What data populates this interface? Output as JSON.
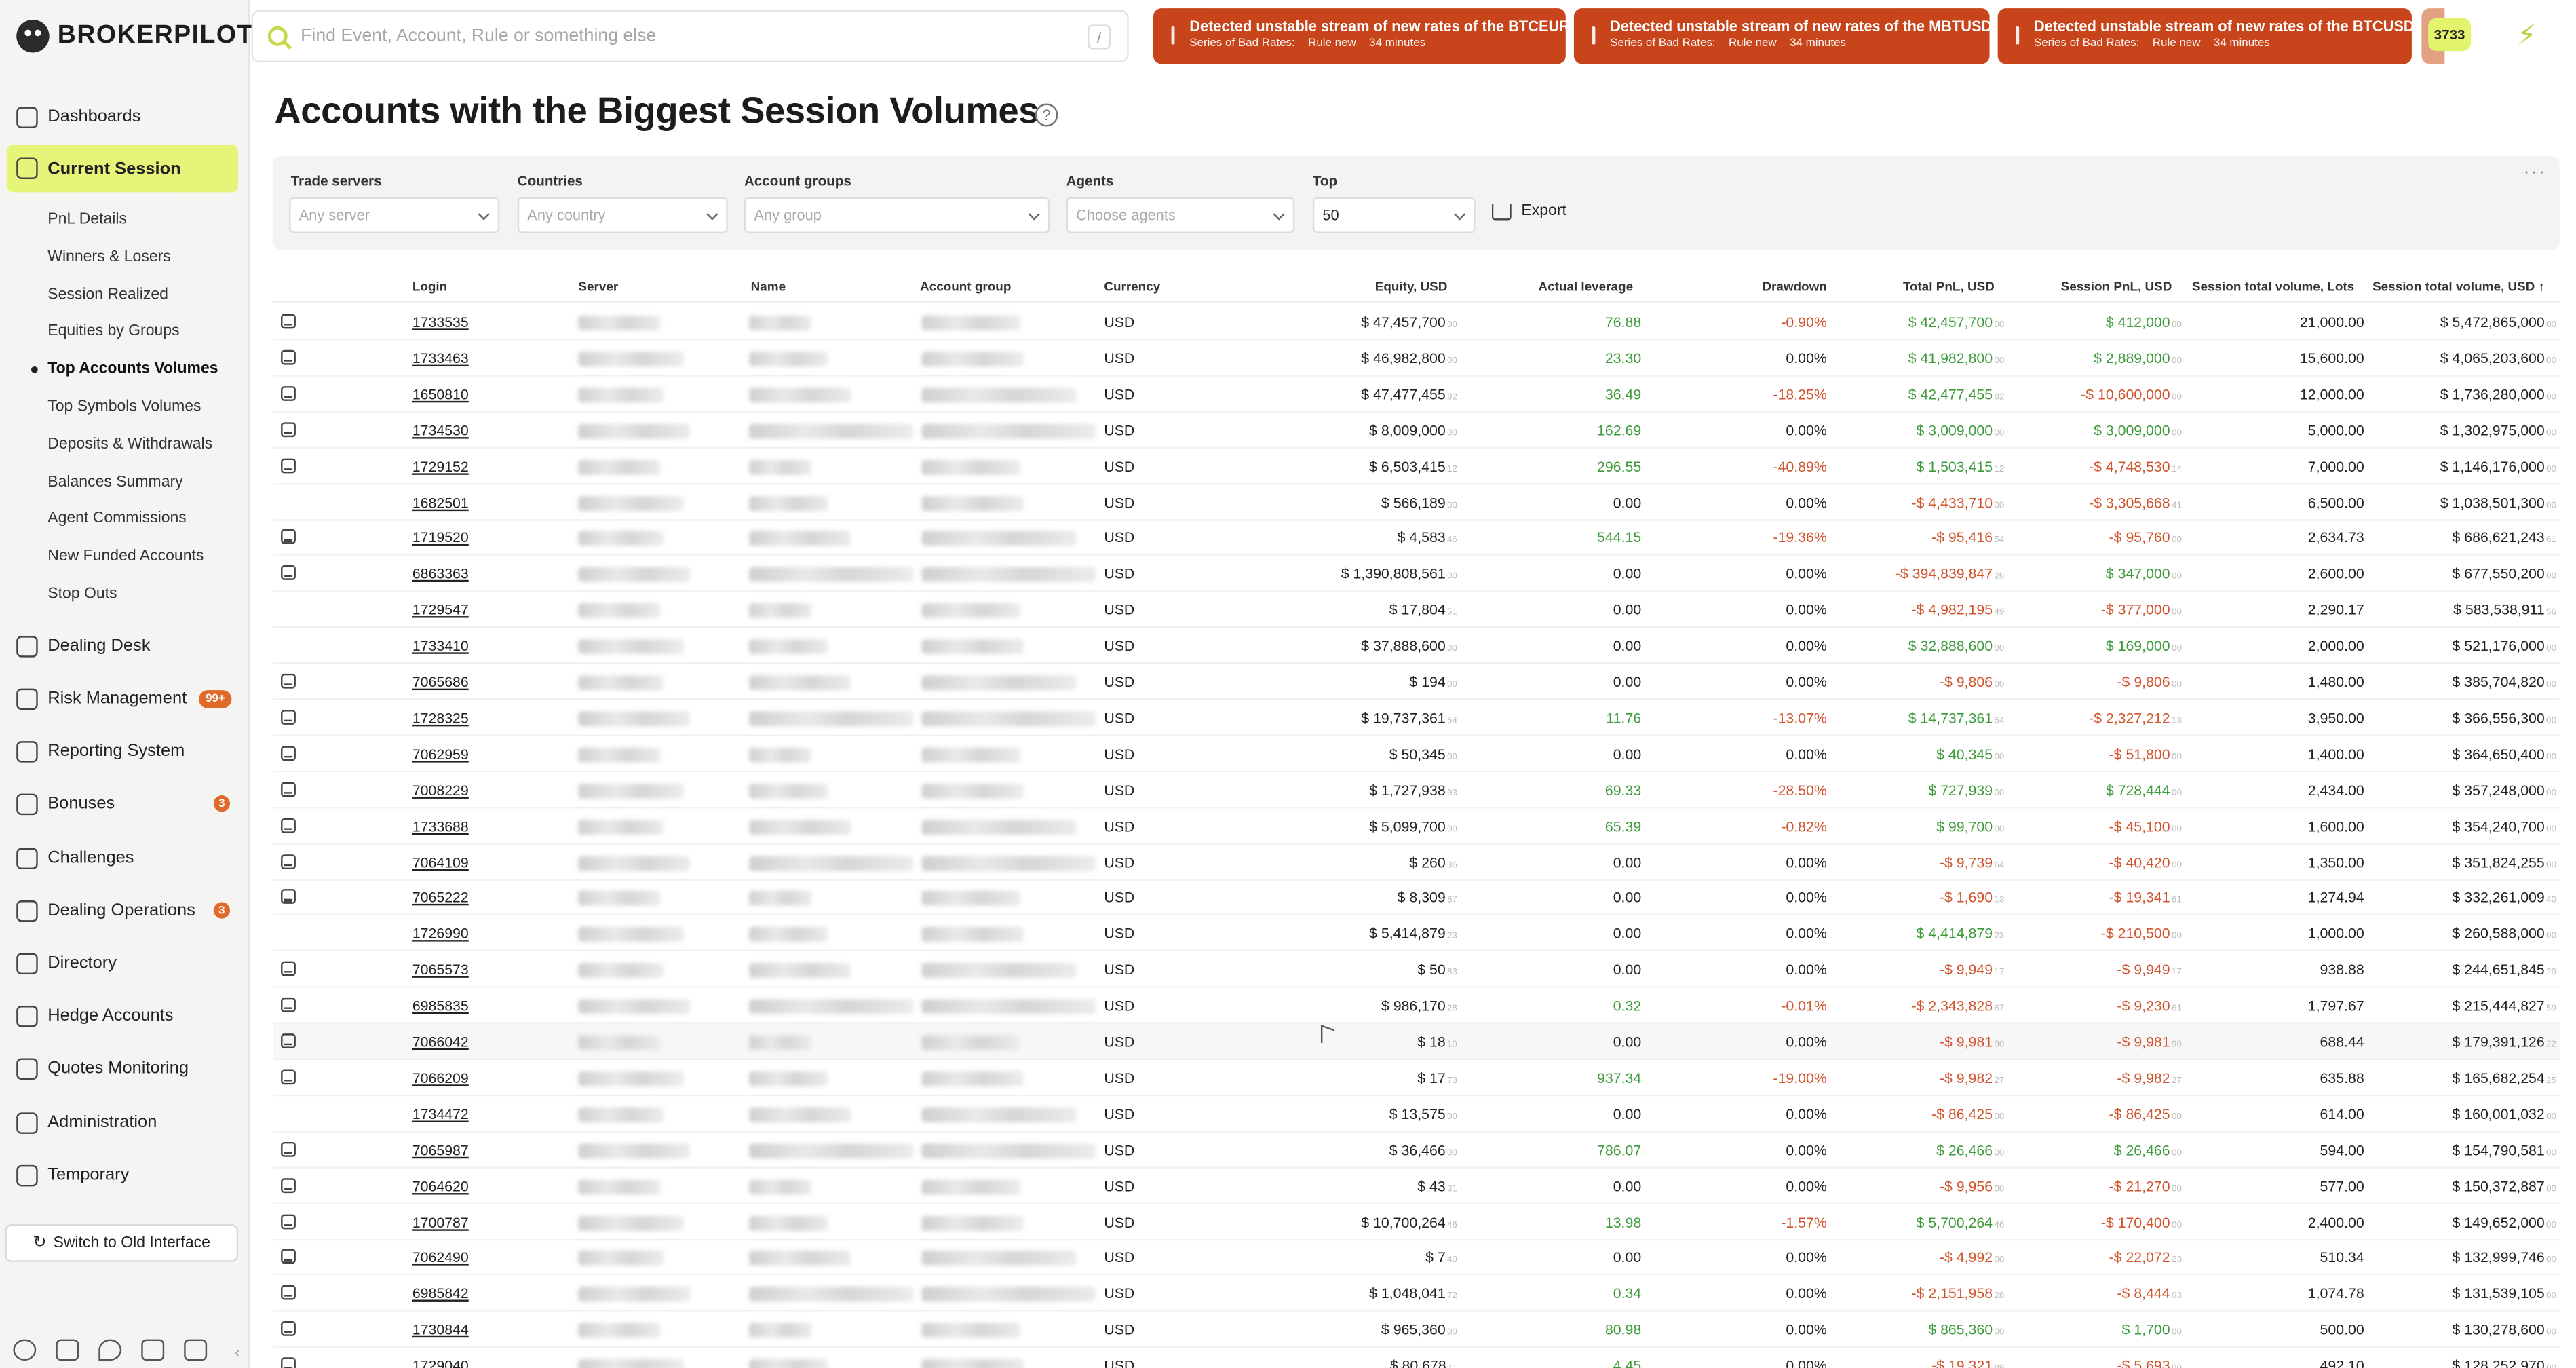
{
  "app": {
    "name": "BROKERPILOT"
  },
  "search": {
    "placeholder": "Find Event, Account, Rule or something else",
    "shortcut": "/"
  },
  "alerts": [
    {
      "title": "Detected unstable stream of new rates of the BTCEUR!",
      "label": "Series of Bad Rates:",
      "rule": "Rule new",
      "time": "34 minutes"
    },
    {
      "title": "Detected unstable stream of new rates of the MBTUSD!",
      "label": "Series of Bad Rates:",
      "rule": "Rule new",
      "time": "34 minutes"
    },
    {
      "title": "Detected unstable stream of new rates of the BTCUSD!",
      "label": "Series of Bad Rates:",
      "rule": "Rule new",
      "time": "34 minutes"
    }
  ],
  "notifications_count": "3733",
  "sidebar": {
    "items": [
      {
        "label": "Dashboards",
        "badge": ""
      },
      {
        "label": "Current Session",
        "badge": ""
      },
      {
        "label": "Dealing Desk",
        "badge": ""
      },
      {
        "label": "Risk Management",
        "badge": "99+"
      },
      {
        "label": "Reporting System",
        "badge": ""
      },
      {
        "label": "Bonuses",
        "badge": "3"
      },
      {
        "label": "Challenges",
        "badge": ""
      },
      {
        "label": "Dealing Operations",
        "badge": "3"
      },
      {
        "label": "Directory",
        "badge": ""
      },
      {
        "label": "Hedge Accounts",
        "badge": ""
      },
      {
        "label": "Quotes Monitoring",
        "badge": ""
      },
      {
        "label": "Administration",
        "badge": ""
      },
      {
        "label": "Temporary",
        "badge": ""
      }
    ],
    "sub_items": [
      "PnL Details",
      "Winners & Losers",
      "Session Realized",
      "Equities by Groups",
      "Top Accounts Volumes",
      "Top Symbols Volumes",
      "Deposits & Withdrawals",
      "Balances Summary",
      "Agent Commissions",
      "New Funded Accounts",
      "Stop Outs"
    ],
    "switch_label": "Switch to Old Interface"
  },
  "page": {
    "title": "Accounts with the Biggest Session Volumes"
  },
  "filters": {
    "trade_servers": {
      "label": "Trade servers",
      "placeholder": "Any server"
    },
    "countries": {
      "label": "Countries",
      "placeholder": "Any country"
    },
    "account_groups": {
      "label": "Account groups",
      "placeholder": "Any group"
    },
    "agents": {
      "label": "Agents",
      "placeholder": "Choose agents"
    },
    "top": {
      "label": "Top",
      "value": "50"
    },
    "export_label": "Export"
  },
  "table": {
    "columns": [
      "Login",
      "Server",
      "Name",
      "Account group",
      "Currency",
      "Equity, USD",
      "Actual leverage",
      "Drawdown",
      "Total PnL, USD",
      "Session PnL, USD",
      "Session total volume, Lots",
      "Session total volume, USD"
    ],
    "sort_indicator": "↑",
    "rows": [
      {
        "icon": true,
        "login": "1733535",
        "currency": "USD",
        "equity": "$ 47,457,700",
        "equity_dec": "00",
        "leverage": "76.88",
        "drawdown": "-0.90%",
        "total_pnl": "$ 42,457,700",
        "total_pnl_dec": "00",
        "session_pnl": "$ 412,000",
        "session_pnl_dec": "00",
        "lots": "21,000.00",
        "vol_usd": "$ 5,472,865,000",
        "vol_dec": "00"
      },
      {
        "icon": true,
        "login": "1733463",
        "currency": "USD",
        "equity": "$ 46,982,800",
        "equity_dec": "00",
        "leverage": "23.30",
        "drawdown": "0.00%",
        "total_pnl": "$ 41,982,800",
        "total_pnl_dec": "00",
        "session_pnl": "$ 2,889,000",
        "session_pnl_dec": "00",
        "lots": "15,600.00",
        "vol_usd": "$ 4,065,203,600",
        "vol_dec": "00"
      },
      {
        "icon": true,
        "login": "1650810",
        "currency": "USD",
        "equity": "$ 47,477,455",
        "equity_dec": "82",
        "leverage": "36.49",
        "drawdown": "-18.25%",
        "total_pnl": "$ 42,477,455",
        "total_pnl_dec": "82",
        "session_pnl": "-$ 10,600,000",
        "session_pnl_dec": "00",
        "lots": "12,000.00",
        "vol_usd": "$ 1,736,280,000",
        "vol_dec": "00"
      },
      {
        "icon": true,
        "login": "1734530",
        "currency": "USD",
        "equity": "$ 8,009,000",
        "equity_dec": "00",
        "leverage": "162.69",
        "drawdown": "0.00%",
        "total_pnl": "$ 3,009,000",
        "total_pnl_dec": "00",
        "session_pnl": "$ 3,009,000",
        "session_pnl_dec": "00",
        "lots": "5,000.00",
        "vol_usd": "$ 1,302,975,000",
        "vol_dec": "00"
      },
      {
        "icon": true,
        "login": "1729152",
        "currency": "USD",
        "equity": "$ 6,503,415",
        "equity_dec": "12",
        "leverage": "296.55",
        "drawdown": "-40.89%",
        "total_pnl": "$ 1,503,415",
        "total_pnl_dec": "12",
        "session_pnl": "-$ 4,748,530",
        "session_pnl_dec": "14",
        "lots": "7,000.00",
        "vol_usd": "$ 1,146,176,000",
        "vol_dec": "00"
      },
      {
        "icon": false,
        "login": "1682501",
        "currency": "USD",
        "equity": "$ 566,189",
        "equity_dec": "00",
        "leverage": "0.00",
        "drawdown": "0.00%",
        "total_pnl": "-$ 4,433,710",
        "total_pnl_dec": "00",
        "session_pnl": "-$ 3,305,668",
        "session_pnl_dec": "41",
        "lots": "6,500.00",
        "vol_usd": "$ 1,038,501,300",
        "vol_dec": "00"
      },
      {
        "icon": true,
        "login": "1719520",
        "currency": "USD",
        "equity": "$ 4,583",
        "equity_dec": "46",
        "leverage": "544.15",
        "drawdown": "-19.36%",
        "total_pnl": "-$ 95,416",
        "total_pnl_dec": "54",
        "session_pnl": "-$ 95,760",
        "session_pnl_dec": "00",
        "lots": "2,634.73",
        "vol_usd": "$ 686,621,243",
        "vol_dec": "61"
      },
      {
        "icon": true,
        "login": "6863363",
        "currency": "USD",
        "equity": "$ 1,390,808,561",
        "equity_dec": "00",
        "leverage": "0.00",
        "drawdown": "0.00%",
        "total_pnl": "-$ 394,839,847",
        "total_pnl_dec": "26",
        "session_pnl": "$ 347,000",
        "session_pnl_dec": "00",
        "lots": "2,600.00",
        "vol_usd": "$ 677,550,200",
        "vol_dec": "00"
      },
      {
        "icon": false,
        "login": "1729547",
        "currency": "USD",
        "equity": "$ 17,804",
        "equity_dec": "51",
        "leverage": "0.00",
        "drawdown": "0.00%",
        "total_pnl": "-$ 4,982,195",
        "total_pnl_dec": "49",
        "session_pnl": "-$ 377,000",
        "session_pnl_dec": "00",
        "lots": "2,290.17",
        "vol_usd": "$ 583,538,911",
        "vol_dec": "56"
      },
      {
        "icon": false,
        "login": "1733410",
        "currency": "USD",
        "equity": "$ 37,888,600",
        "equity_dec": "00",
        "leverage": "0.00",
        "drawdown": "0.00%",
        "total_pnl": "$ 32,888,600",
        "total_pnl_dec": "00",
        "session_pnl": "$ 169,000",
        "session_pnl_dec": "00",
        "lots": "2,000.00",
        "vol_usd": "$ 521,176,000",
        "vol_dec": "00"
      },
      {
        "icon": true,
        "login": "7065686",
        "currency": "USD",
        "equity": "$ 194",
        "equity_dec": "00",
        "leverage": "0.00",
        "drawdown": "0.00%",
        "total_pnl": "-$ 9,806",
        "total_pnl_dec": "00",
        "session_pnl": "-$ 9,806",
        "session_pnl_dec": "00",
        "lots": "1,480.00",
        "vol_usd": "$ 385,704,820",
        "vol_dec": "00"
      },
      {
        "icon": true,
        "login": "1728325",
        "currency": "USD",
        "equity": "$ 19,737,361",
        "equity_dec": "54",
        "leverage": "11.76",
        "drawdown": "-13.07%",
        "total_pnl": "$ 14,737,361",
        "total_pnl_dec": "54",
        "session_pnl": "-$ 2,327,212",
        "session_pnl_dec": "13",
        "lots": "3,950.00",
        "vol_usd": "$ 366,556,300",
        "vol_dec": "00"
      },
      {
        "icon": true,
        "login": "7062959",
        "currency": "USD",
        "equity": "$ 50,345",
        "equity_dec": "00",
        "leverage": "0.00",
        "drawdown": "0.00%",
        "total_pnl": "$ 40,345",
        "total_pnl_dec": "00",
        "session_pnl": "-$ 51,800",
        "session_pnl_dec": "00",
        "lots": "1,400.00",
        "vol_usd": "$ 364,650,400",
        "vol_dec": "00"
      },
      {
        "icon": true,
        "login": "7008229",
        "currency": "USD",
        "equity": "$ 1,727,938",
        "equity_dec": "93",
        "leverage": "69.33",
        "drawdown": "-28.50%",
        "total_pnl": "$ 727,939",
        "total_pnl_dec": "00",
        "session_pnl": "$ 728,444",
        "session_pnl_dec": "00",
        "lots": "2,434.00",
        "vol_usd": "$ 357,248,000",
        "vol_dec": "00"
      },
      {
        "icon": true,
        "login": "1733688",
        "currency": "USD",
        "equity": "$ 5,099,700",
        "equity_dec": "00",
        "leverage": "65.39",
        "drawdown": "-0.82%",
        "total_pnl": "$ 99,700",
        "total_pnl_dec": "00",
        "session_pnl": "-$ 45,100",
        "session_pnl_dec": "00",
        "lots": "1,600.00",
        "vol_usd": "$ 354,240,700",
        "vol_dec": "00"
      },
      {
        "icon": true,
        "login": "7064109",
        "currency": "USD",
        "equity": "$ 260",
        "equity_dec": "36",
        "leverage": "0.00",
        "drawdown": "0.00%",
        "total_pnl": "-$ 9,739",
        "total_pnl_dec": "64",
        "session_pnl": "-$ 40,420",
        "session_pnl_dec": "00",
        "lots": "1,350.00",
        "vol_usd": "$ 351,824,255",
        "vol_dec": "00"
      },
      {
        "icon": true,
        "login": "7065222",
        "currency": "USD",
        "equity": "$ 8,309",
        "equity_dec": "87",
        "leverage": "0.00",
        "drawdown": "0.00%",
        "total_pnl": "-$ 1,690",
        "total_pnl_dec": "13",
        "session_pnl": "-$ 19,341",
        "session_pnl_dec": "61",
        "lots": "1,274.94",
        "vol_usd": "$ 332,261,009",
        "vol_dec": "40"
      },
      {
        "icon": false,
        "login": "1726990",
        "currency": "USD",
        "equity": "$ 5,414,879",
        "equity_dec": "23",
        "leverage": "0.00",
        "drawdown": "0.00%",
        "total_pnl": "$ 4,414,879",
        "total_pnl_dec": "23",
        "session_pnl": "-$ 210,500",
        "session_pnl_dec": "00",
        "lots": "1,000.00",
        "vol_usd": "$ 260,588,000",
        "vol_dec": "00"
      },
      {
        "icon": true,
        "login": "7065573",
        "currency": "USD",
        "equity": "$ 50",
        "equity_dec": "83",
        "leverage": "0.00",
        "drawdown": "0.00%",
        "total_pnl": "-$ 9,949",
        "total_pnl_dec": "17",
        "session_pnl": "-$ 9,949",
        "session_pnl_dec": "17",
        "lots": "938.88",
        "vol_usd": "$ 244,651,845",
        "vol_dec": "29"
      },
      {
        "icon": true,
        "login": "6985835",
        "currency": "USD",
        "equity": "$ 986,170",
        "equity_dec": "28",
        "leverage": "0.32",
        "drawdown": "-0.01%",
        "total_pnl": "-$ 2,343,828",
        "total_pnl_dec": "67",
        "session_pnl": "-$ 9,230",
        "session_pnl_dec": "61",
        "lots": "1,797.67",
        "vol_usd": "$ 215,444,827",
        "vol_dec": "59"
      },
      {
        "icon": true,
        "login": "7066042",
        "currency": "USD",
        "equity": "$ 18",
        "equity_dec": "10",
        "leverage": "0.00",
        "drawdown": "0.00%",
        "total_pnl": "-$ 9,981",
        "total_pnl_dec": "90",
        "session_pnl": "-$ 9,981",
        "session_pnl_dec": "90",
        "lots": "688.44",
        "vol_usd": "$ 179,391,126",
        "vol_dec": "22"
      },
      {
        "icon": true,
        "login": "7066209",
        "currency": "USD",
        "equity": "$ 17",
        "equity_dec": "73",
        "leverage": "937.34",
        "drawdown": "-19.00%",
        "total_pnl": "-$ 9,982",
        "total_pnl_dec": "27",
        "session_pnl": "-$ 9,982",
        "session_pnl_dec": "27",
        "lots": "635.88",
        "vol_usd": "$ 165,682,254",
        "vol_dec": "25"
      },
      {
        "icon": false,
        "login": "1734472",
        "currency": "USD",
        "equity": "$ 13,575",
        "equity_dec": "00",
        "leverage": "0.00",
        "drawdown": "0.00%",
        "total_pnl": "-$ 86,425",
        "total_pnl_dec": "00",
        "session_pnl": "-$ 86,425",
        "session_pnl_dec": "00",
        "lots": "614.00",
        "vol_usd": "$ 160,001,032",
        "vol_dec": "00"
      },
      {
        "icon": true,
        "login": "7065987",
        "currency": "USD",
        "equity": "$ 36,466",
        "equity_dec": "00",
        "leverage": "786.07",
        "drawdown": "0.00%",
        "total_pnl": "$ 26,466",
        "total_pnl_dec": "00",
        "session_pnl": "$ 26,466",
        "session_pnl_dec": "00",
        "lots": "594.00",
        "vol_usd": "$ 154,790,581",
        "vol_dec": "00"
      },
      {
        "icon": true,
        "login": "7064620",
        "currency": "USD",
        "equity": "$ 43",
        "equity_dec": "31",
        "leverage": "0.00",
        "drawdown": "0.00%",
        "total_pnl": "-$ 9,956",
        "total_pnl_dec": "00",
        "session_pnl": "-$ 21,270",
        "session_pnl_dec": "00",
        "lots": "577.00",
        "vol_usd": "$ 150,372,887",
        "vol_dec": "00"
      },
      {
        "icon": true,
        "login": "1700787",
        "currency": "USD",
        "equity": "$ 10,700,264",
        "equity_dec": "46",
        "leverage": "13.98",
        "drawdown": "-1.57%",
        "total_pnl": "$ 5,700,264",
        "total_pnl_dec": "46",
        "session_pnl": "-$ 170,400",
        "session_pnl_dec": "00",
        "lots": "2,400.00",
        "vol_usd": "$ 149,652,000",
        "vol_dec": "00"
      },
      {
        "icon": true,
        "login": "7062490",
        "currency": "USD",
        "equity": "$ 7",
        "equity_dec": "40",
        "leverage": "0.00",
        "drawdown": "0.00%",
        "total_pnl": "-$ 4,992",
        "total_pnl_dec": "00",
        "session_pnl": "-$ 22,072",
        "session_pnl_dec": "23",
        "lots": "510.34",
        "vol_usd": "$ 132,999,746",
        "vol_dec": "00"
      },
      {
        "icon": true,
        "login": "6985842",
        "currency": "USD",
        "equity": "$ 1,048,041",
        "equity_dec": "72",
        "leverage": "0.34",
        "drawdown": "0.00%",
        "total_pnl": "-$ 2,151,958",
        "total_pnl_dec": "28",
        "session_pnl": "-$ 8,444",
        "session_pnl_dec": "03",
        "lots": "1,074.78",
        "vol_usd": "$ 131,539,105",
        "vol_dec": "00"
      },
      {
        "icon": true,
        "login": "1730844",
        "currency": "USD",
        "equity": "$ 965,360",
        "equity_dec": "00",
        "leverage": "80.98",
        "drawdown": "0.00%",
        "total_pnl": "$ 865,360",
        "total_pnl_dec": "00",
        "session_pnl": "$ 1,700",
        "session_pnl_dec": "00",
        "lots": "500.00",
        "vol_usd": "$ 130,278,600",
        "vol_dec": "00"
      },
      {
        "icon": true,
        "login": "1729040",
        "currency": "USD",
        "equity": "$ 80,678",
        "equity_dec": "11",
        "leverage": "4.45",
        "drawdown": "0.00%",
        "total_pnl": "-$ 19,321",
        "total_pnl_dec": "89",
        "session_pnl": "-$ 5,693",
        "session_pnl_dec": "00",
        "lots": "492.10",
        "vol_usd": "$ 128,252,970",
        "vol_dec": "00"
      }
    ]
  },
  "colors": {
    "accent": "#e5f57a",
    "alert": "#c8441b",
    "positive": "#3d9a3a",
    "negative": "#d0542d"
  }
}
